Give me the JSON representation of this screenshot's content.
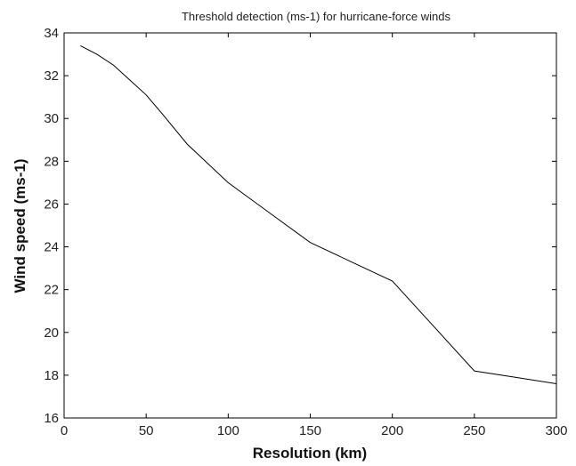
{
  "chart_data": {
    "type": "line",
    "title": "Threshold detection (ms-1) for hurricane-force winds",
    "xlabel": "Resolution (km)",
    "ylabel": "Wind speed (ms-1)",
    "xlim": [
      0,
      300
    ],
    "ylim": [
      16,
      34
    ],
    "xticks": [
      0,
      50,
      100,
      150,
      200,
      250,
      300
    ],
    "yticks": [
      16,
      18,
      20,
      22,
      24,
      26,
      28,
      30,
      32,
      34
    ],
    "grid": false,
    "series": [
      {
        "color": "#000000",
        "x": [
          10,
          20,
          30,
          40,
          50,
          60,
          75,
          100,
          125,
          150,
          175,
          200,
          225,
          250,
          275,
          300
        ],
        "y": [
          33.4,
          33.0,
          32.5,
          31.8,
          31.1,
          30.2,
          28.8,
          27.0,
          25.6,
          24.2,
          23.3,
          22.4,
          20.3,
          18.2,
          17.9,
          17.6
        ]
      }
    ]
  }
}
